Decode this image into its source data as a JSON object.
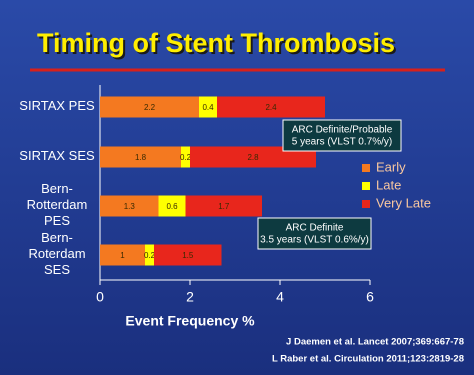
{
  "chart_data": {
    "type": "stacked-bar-horizontal",
    "title": "Timing of Stent Thrombosis",
    "categories": [
      "SIRTAX PES",
      "SIRTAX SES",
      "Bern-\nRotterdam\nPES",
      "Bern-\nRoterdam\nSES"
    ],
    "series": [
      {
        "name": "Early",
        "color": "#f47920",
        "values": [
          2.2,
          1.8,
          1.3,
          1
        ]
      },
      {
        "name": "Late",
        "color": "#ffff00",
        "values": [
          0.4,
          0.2,
          0.6,
          0.2
        ]
      },
      {
        "name": "Very Late",
        "color": "#e8261c",
        "values": [
          2.4,
          2.8,
          1.7,
          1.5
        ]
      }
    ],
    "xlim": [
      0,
      6
    ],
    "xticks": [
      0,
      2,
      4,
      6
    ],
    "x_label": "Event Frequency %",
    "annotations": [
      "ARC Definite/Probable\n5 years (VLST 0.7%/y)",
      "ARC Definite\n3.5 years (VLST 0.6%/y)"
    ],
    "citations": [
      "J Daemen et al. Lancet 2007;369:667-78",
      "L Raber et al. Circulation 2011;123:2819-28"
    ]
  }
}
